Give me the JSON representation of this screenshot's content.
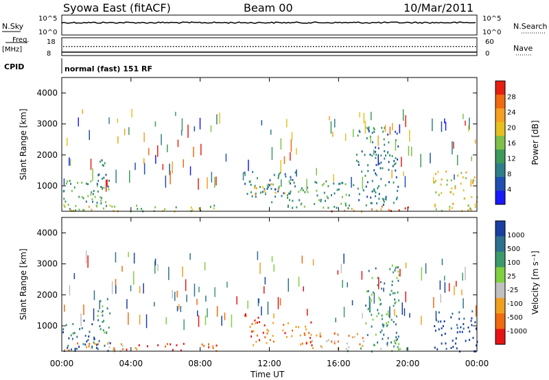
{
  "header": {
    "station": "Syowa East (fitACF)",
    "beam": "Beam 00",
    "date": "10/Mar/2011"
  },
  "top_panels": {
    "nsky_label": "N.Sky",
    "nsearch_label": "N.Search",
    "left_top": "10^5",
    "left_bottom": "10^0",
    "right_top": "10^5",
    "right_bottom": "10^0",
    "freq_label": "Freq.",
    "mhz_label": "[MHz]",
    "freq_top": "18",
    "freq_bottom": "8",
    "nave_label": "Nave",
    "nave_top": "60",
    "nave_bottom": "0",
    "cpid_label": "CPID",
    "cpid_text": "normal (fast) 151 RF"
  },
  "colors": {
    "power_scale": [
      "#1a1aff",
      "#1f4fb0",
      "#2e7f8a",
      "#3c9a5a",
      "#7fc04a",
      "#e6c020",
      "#f5a020",
      "#f06a10",
      "#e62010"
    ],
    "velocity_scale": [
      "#e61515",
      "#f06a10",
      "#f0a020",
      "#c0c0c0",
      "#80d040",
      "#3a9a6a",
      "#2e7090",
      "#1a3fa0"
    ]
  },
  "chart_data": [
    {
      "type": "heatmap",
      "name": "power",
      "ylabel": "Slant Range [km]",
      "xlabel": "Time UT",
      "x_ticks": [
        "00:00",
        "04:00",
        "08:00",
        "12:00",
        "16:00",
        "20:00",
        "00:00"
      ],
      "y_ticks": [
        "1000",
        "2000",
        "3000",
        "4000"
      ],
      "xlim": [
        0,
        24
      ],
      "ylim": [
        180,
        4500
      ],
      "colorbar_label": "Power [dB]",
      "colorbar_ticks": [
        "4",
        "8",
        "12",
        "16",
        "20",
        "24",
        "28"
      ],
      "regions": [
        {
          "t0": 0.0,
          "t1": 2.8,
          "r0": 200,
          "r1": 1200,
          "level": 3
        },
        {
          "t0": 0.0,
          "t1": 3.5,
          "r0": 200,
          "r1": 450,
          "level": 5
        },
        {
          "t0": 2.0,
          "t1": 2.8,
          "r0": 800,
          "r1": 1900,
          "level": 2
        },
        {
          "t0": 3.0,
          "t1": 9.0,
          "r0": 200,
          "r1": 400,
          "level": 4
        },
        {
          "t0": 10.5,
          "t1": 13.5,
          "r0": 500,
          "r1": 1500,
          "level": 2
        },
        {
          "t0": 11.0,
          "t1": 13.0,
          "r0": 700,
          "r1": 1100,
          "level": 5
        },
        {
          "t0": 13.0,
          "t1": 17.0,
          "r0": 300,
          "r1": 1200,
          "level": 3
        },
        {
          "t0": 15.5,
          "t1": 20.0,
          "r0": 200,
          "r1": 380,
          "level": 7
        },
        {
          "t0": 17.0,
          "t1": 19.5,
          "r0": 400,
          "r1": 3000,
          "level": 2
        },
        {
          "t0": 21.5,
          "t1": 24.0,
          "r0": 200,
          "r1": 1500,
          "level": 5
        }
      ]
    },
    {
      "type": "heatmap",
      "name": "velocity",
      "ylabel": "Slant Range [km]",
      "xlabel": "Time UT",
      "x_ticks": [
        "00:00",
        "04:00",
        "08:00",
        "12:00",
        "16:00",
        "20:00",
        "00:00"
      ],
      "y_ticks": [
        "1000",
        "2000",
        "3000",
        "4000"
      ],
      "xlim": [
        0,
        24
      ],
      "ylim": [
        180,
        4500
      ],
      "colorbar_label": "Velocity [m s⁻¹]",
      "colorbar_ticks": [
        "1000",
        "500",
        "100",
        "25",
        "-25",
        "-100",
        "-500",
        "-1000"
      ],
      "regions": [
        {
          "t0": 0.0,
          "t1": 2.8,
          "r0": 200,
          "r1": 1200,
          "level": 6
        },
        {
          "t0": 0.0,
          "t1": 3.5,
          "r0": 200,
          "r1": 500,
          "level": 2
        },
        {
          "t0": 2.0,
          "t1": 2.8,
          "r0": 800,
          "r1": 1900,
          "level": 5
        },
        {
          "t0": 3.0,
          "t1": 9.0,
          "r0": 200,
          "r1": 450,
          "level": 1
        },
        {
          "t0": 10.5,
          "t1": 11.5,
          "r0": 1100,
          "r1": 1450,
          "level": 0
        },
        {
          "t0": 10.8,
          "t1": 14.5,
          "r0": 400,
          "r1": 1150,
          "level": 1
        },
        {
          "t0": 14.0,
          "t1": 17.5,
          "r0": 250,
          "r1": 800,
          "level": 2
        },
        {
          "t0": 16.0,
          "t1": 20.0,
          "r0": 200,
          "r1": 400,
          "level": 4
        },
        {
          "t0": 17.5,
          "t1": 19.5,
          "r0": 400,
          "r1": 3000,
          "level": 5
        },
        {
          "t0": 21.5,
          "t1": 24.0,
          "r0": 200,
          "r1": 1500,
          "level": 7
        }
      ]
    }
  ]
}
